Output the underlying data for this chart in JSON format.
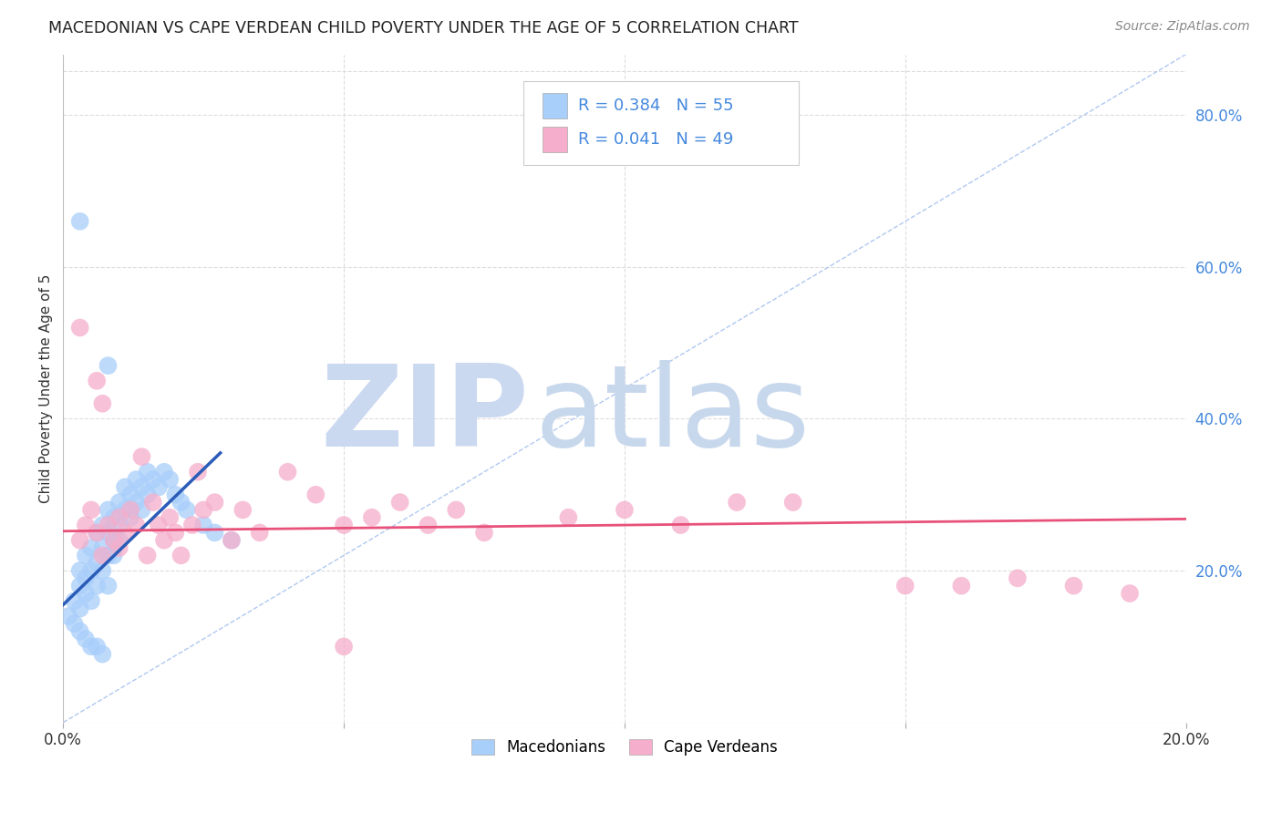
{
  "title": "MACEDONIAN VS CAPE VERDEAN CHILD POVERTY UNDER THE AGE OF 5 CORRELATION CHART",
  "source": "Source: ZipAtlas.com",
  "ylabel": "Child Poverty Under the Age of 5",
  "xlim": [
    0.0,
    0.2
  ],
  "ylim": [
    0.0,
    0.88
  ],
  "x_ticks": [
    0.0,
    0.05,
    0.1,
    0.15,
    0.2
  ],
  "x_tick_labels": [
    "0.0%",
    "",
    "",
    "",
    "20.0%"
  ],
  "y_ticks_right": [
    0.2,
    0.4,
    0.6,
    0.8
  ],
  "mac_color": "#A8CEFA",
  "cape_color": "#F5AECB",
  "mac_line_color": "#2B5CB8",
  "cape_line_color": "#E8517A",
  "diagonal_color": "#B0C8F0",
  "background_color": "#FFFFFF",
  "grid_color": "#DDDDDD",
  "watermark_zip_color": "#CBD9F0",
  "watermark_atlas_color": "#C8D8EC",
  "title_color": "#222222",
  "title_fontsize": 12.5,
  "axis_label_color": "#4488DD",
  "legend_fontsize": 13,
  "mac_x": [
    0.001,
    0.002,
    0.002,
    0.003,
    0.003,
    0.003,
    0.004,
    0.004,
    0.004,
    0.005,
    0.005,
    0.005,
    0.006,
    0.006,
    0.006,
    0.007,
    0.007,
    0.007,
    0.008,
    0.008,
    0.008,
    0.008,
    0.009,
    0.009,
    0.009,
    0.01,
    0.01,
    0.01,
    0.011,
    0.011,
    0.012,
    0.012,
    0.013,
    0.013,
    0.014,
    0.014,
    0.015,
    0.015,
    0.016,
    0.017,
    0.018,
    0.019,
    0.02,
    0.021,
    0.022,
    0.025,
    0.027,
    0.03,
    0.003,
    0.004,
    0.005,
    0.006,
    0.007,
    0.003,
    0.008
  ],
  "mac_y": [
    0.14,
    0.13,
    0.16,
    0.15,
    0.18,
    0.2,
    0.17,
    0.19,
    0.22,
    0.16,
    0.2,
    0.23,
    0.18,
    0.21,
    0.25,
    0.2,
    0.23,
    0.26,
    0.22,
    0.25,
    0.18,
    0.28,
    0.24,
    0.27,
    0.22,
    0.26,
    0.29,
    0.24,
    0.28,
    0.31,
    0.27,
    0.3,
    0.29,
    0.32,
    0.31,
    0.28,
    0.33,
    0.3,
    0.32,
    0.31,
    0.33,
    0.32,
    0.3,
    0.29,
    0.28,
    0.26,
    0.25,
    0.24,
    0.12,
    0.11,
    0.1,
    0.1,
    0.09,
    0.66,
    0.47
  ],
  "cape_x": [
    0.003,
    0.004,
    0.005,
    0.006,
    0.007,
    0.008,
    0.009,
    0.01,
    0.01,
    0.011,
    0.012,
    0.013,
    0.014,
    0.015,
    0.016,
    0.017,
    0.018,
    0.019,
    0.02,
    0.021,
    0.023,
    0.024,
    0.025,
    0.027,
    0.03,
    0.032,
    0.035,
    0.04,
    0.045,
    0.05,
    0.055,
    0.06,
    0.065,
    0.07,
    0.075,
    0.09,
    0.1,
    0.11,
    0.12,
    0.13,
    0.15,
    0.16,
    0.17,
    0.18,
    0.19,
    0.003,
    0.006,
    0.007,
    0.05
  ],
  "cape_y": [
    0.24,
    0.26,
    0.28,
    0.25,
    0.22,
    0.26,
    0.24,
    0.27,
    0.23,
    0.25,
    0.28,
    0.26,
    0.35,
    0.22,
    0.29,
    0.26,
    0.24,
    0.27,
    0.25,
    0.22,
    0.26,
    0.33,
    0.28,
    0.29,
    0.24,
    0.28,
    0.25,
    0.33,
    0.3,
    0.26,
    0.27,
    0.29,
    0.26,
    0.28,
    0.25,
    0.27,
    0.28,
    0.26,
    0.29,
    0.29,
    0.18,
    0.18,
    0.19,
    0.18,
    0.17,
    0.52,
    0.45,
    0.42,
    0.1
  ]
}
